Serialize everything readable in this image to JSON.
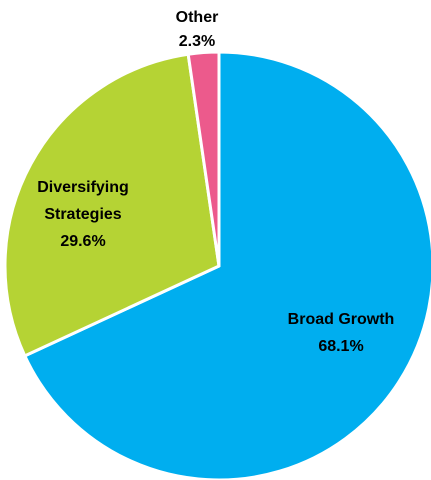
{
  "chart_data": {
    "type": "pie",
    "slices": [
      {
        "label": "Broad Growth",
        "value": 68.1,
        "value_label": "68.1%",
        "color": "#00AEEF"
      },
      {
        "label": "Diversifying Strategies",
        "value": 29.6,
        "value_label": "29.6%",
        "color": "#B5D334"
      },
      {
        "label": "Other",
        "value": 2.3,
        "value_label": "2.3%",
        "color": "#EC5A8C"
      }
    ],
    "title": "",
    "legend": "none",
    "start": "top-clockwise"
  },
  "labels": {
    "broad_growth_name": "Broad Growth",
    "broad_growth_value": "68.1%",
    "diversifying_name_line1": "Diversifying",
    "diversifying_name_line2": "Strategies",
    "diversifying_value": "29.6%",
    "other_name": "Other",
    "other_value": "2.3%"
  }
}
